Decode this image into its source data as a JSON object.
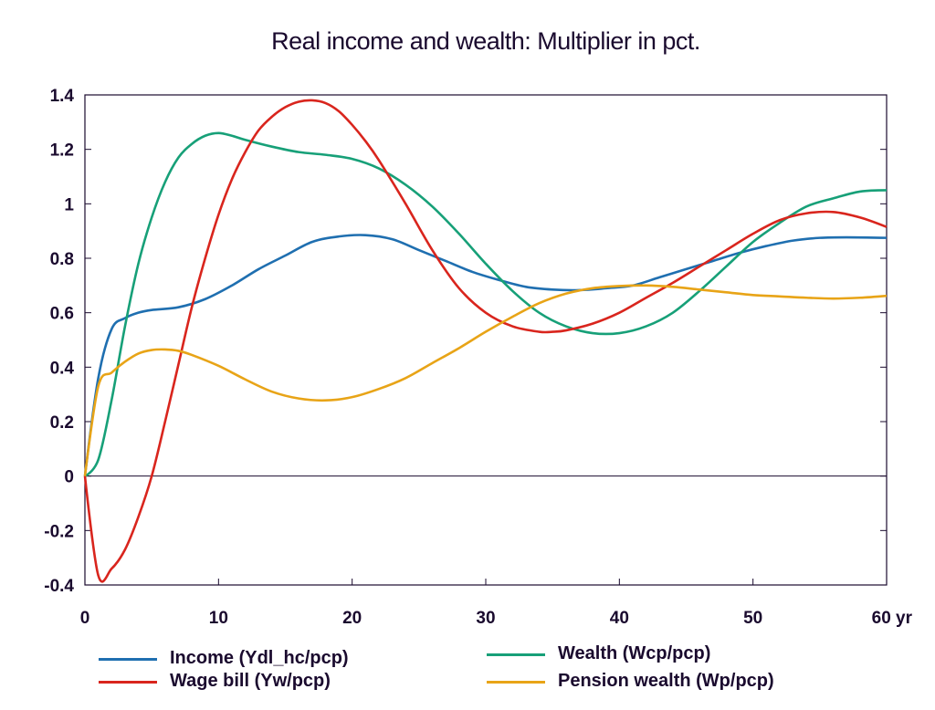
{
  "chart_data": {
    "type": "line",
    "title": "Real income and wealth: Multiplier in pct.",
    "xlabel": "",
    "ylabel": "",
    "xlim": [
      0,
      60
    ],
    "ylim": [
      -0.4,
      1.4
    ],
    "x_ticks": [
      "0",
      "10",
      "20",
      "30",
      "40",
      "50",
      "60 yr"
    ],
    "x_tick_values": [
      0,
      10,
      20,
      30,
      40,
      50,
      60
    ],
    "y_ticks": [
      "-0.4",
      "-0.2",
      "0",
      "0.2",
      "0.4",
      "0.6",
      "0.8",
      "1",
      "1.2",
      "1.4"
    ],
    "y_tick_values": [
      -0.4,
      -0.2,
      0,
      0.2,
      0.4,
      0.6,
      0.8,
      1,
      1.2,
      1.4
    ],
    "grid": false,
    "zero_line": true,
    "legend_position": "bottom",
    "series": [
      {
        "name": "Income (Ydl_hc/pcp)",
        "color": "#1f6fb0",
        "points": [
          [
            0,
            0
          ],
          [
            1,
            0.36
          ],
          [
            2,
            0.54
          ],
          [
            3,
            0.58
          ],
          [
            4,
            0.6
          ],
          [
            5,
            0.61
          ],
          [
            7,
            0.62
          ],
          [
            9,
            0.65
          ],
          [
            11,
            0.7
          ],
          [
            13,
            0.76
          ],
          [
            15,
            0.81
          ],
          [
            17,
            0.86
          ],
          [
            19,
            0.88
          ],
          [
            21,
            0.885
          ],
          [
            23,
            0.87
          ],
          [
            25,
            0.83
          ],
          [
            27,
            0.79
          ],
          [
            29,
            0.75
          ],
          [
            31,
            0.72
          ],
          [
            33,
            0.695
          ],
          [
            35,
            0.685
          ],
          [
            37,
            0.683
          ],
          [
            39,
            0.69
          ],
          [
            41,
            0.7
          ],
          [
            43,
            0.73
          ],
          [
            45,
            0.76
          ],
          [
            47,
            0.79
          ],
          [
            49,
            0.82
          ],
          [
            51,
            0.845
          ],
          [
            53,
            0.865
          ],
          [
            55,
            0.875
          ],
          [
            57,
            0.877
          ],
          [
            60,
            0.875
          ]
        ]
      },
      {
        "name": "Wealth (Wcp/pcp)",
        "color": "#17a078",
        "points": [
          [
            0,
            0
          ],
          [
            1,
            0.06
          ],
          [
            2,
            0.28
          ],
          [
            3,
            0.55
          ],
          [
            4,
            0.78
          ],
          [
            5,
            0.95
          ],
          [
            6,
            1.08
          ],
          [
            7,
            1.17
          ],
          [
            8,
            1.22
          ],
          [
            9,
            1.25
          ],
          [
            10,
            1.26
          ],
          [
            11,
            1.25
          ],
          [
            12,
            1.235
          ],
          [
            14,
            1.21
          ],
          [
            16,
            1.19
          ],
          [
            18,
            1.18
          ],
          [
            20,
            1.165
          ],
          [
            22,
            1.13
          ],
          [
            24,
            1.07
          ],
          [
            26,
            0.99
          ],
          [
            28,
            0.89
          ],
          [
            30,
            0.78
          ],
          [
            32,
            0.68
          ],
          [
            34,
            0.6
          ],
          [
            36,
            0.55
          ],
          [
            38,
            0.525
          ],
          [
            40,
            0.525
          ],
          [
            42,
            0.55
          ],
          [
            44,
            0.6
          ],
          [
            46,
            0.68
          ],
          [
            48,
            0.77
          ],
          [
            50,
            0.86
          ],
          [
            52,
            0.93
          ],
          [
            54,
            0.99
          ],
          [
            56,
            1.02
          ],
          [
            58,
            1.045
          ],
          [
            60,
            1.05
          ]
        ]
      },
      {
        "name": "Wage bill (Yw/pcp)",
        "color": "#d9251d",
        "points": [
          [
            0,
            0
          ],
          [
            1,
            -0.365
          ],
          [
            2,
            -0.34
          ],
          [
            3,
            -0.27
          ],
          [
            4,
            -0.15
          ],
          [
            5,
            0.0
          ],
          [
            6,
            0.2
          ],
          [
            7,
            0.41
          ],
          [
            8,
            0.62
          ],
          [
            9,
            0.8
          ],
          [
            10,
            0.96
          ],
          [
            11,
            1.09
          ],
          [
            12,
            1.19
          ],
          [
            13,
            1.27
          ],
          [
            14,
            1.32
          ],
          [
            15,
            1.355
          ],
          [
            16,
            1.375
          ],
          [
            17,
            1.38
          ],
          [
            18,
            1.37
          ],
          [
            19,
            1.34
          ],
          [
            20,
            1.29
          ],
          [
            21,
            1.23
          ],
          [
            22,
            1.16
          ],
          [
            24,
            1.0
          ],
          [
            26,
            0.83
          ],
          [
            28,
            0.69
          ],
          [
            30,
            0.6
          ],
          [
            32,
            0.55
          ],
          [
            34,
            0.53
          ],
          [
            35,
            0.53
          ],
          [
            36,
            0.535
          ],
          [
            38,
            0.56
          ],
          [
            40,
            0.6
          ],
          [
            42,
            0.655
          ],
          [
            44,
            0.71
          ],
          [
            46,
            0.77
          ],
          [
            48,
            0.83
          ],
          [
            50,
            0.89
          ],
          [
            52,
            0.94
          ],
          [
            54,
            0.965
          ],
          [
            56,
            0.97
          ],
          [
            58,
            0.95
          ],
          [
            60,
            0.915
          ]
        ]
      },
      {
        "name": "Pension wealth (Wp/pcp)",
        "color": "#e8a417",
        "points": [
          [
            0,
            0
          ],
          [
            1,
            0.33
          ],
          [
            2,
            0.38
          ],
          [
            3,
            0.42
          ],
          [
            4,
            0.45
          ],
          [
            5,
            0.463
          ],
          [
            6,
            0.465
          ],
          [
            7,
            0.46
          ],
          [
            8,
            0.445
          ],
          [
            10,
            0.405
          ],
          [
            12,
            0.355
          ],
          [
            14,
            0.31
          ],
          [
            16,
            0.285
          ],
          [
            18,
            0.278
          ],
          [
            20,
            0.29
          ],
          [
            22,
            0.32
          ],
          [
            24,
            0.36
          ],
          [
            26,
            0.415
          ],
          [
            28,
            0.47
          ],
          [
            30,
            0.53
          ],
          [
            32,
            0.585
          ],
          [
            34,
            0.635
          ],
          [
            36,
            0.67
          ],
          [
            38,
            0.69
          ],
          [
            40,
            0.698
          ],
          [
            42,
            0.7
          ],
          [
            44,
            0.695
          ],
          [
            46,
            0.685
          ],
          [
            48,
            0.675
          ],
          [
            50,
            0.665
          ],
          [
            52,
            0.66
          ],
          [
            54,
            0.655
          ],
          [
            56,
            0.652
          ],
          [
            58,
            0.655
          ],
          [
            60,
            0.662
          ]
        ]
      }
    ]
  }
}
